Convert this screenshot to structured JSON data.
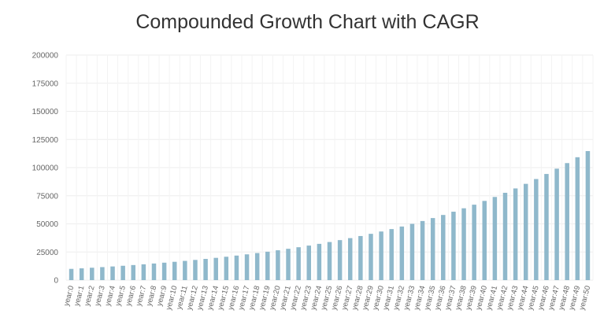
{
  "chart_data": {
    "type": "bar",
    "title": "Compounded Growth Chart with CAGR",
    "xlabel": "",
    "ylabel": "",
    "ylim": [
      0,
      200000
    ],
    "yticks": [
      0,
      25000,
      50000,
      75000,
      100000,
      125000,
      150000,
      175000,
      200000
    ],
    "grid": true,
    "bar_color": "#8fb8cb",
    "categories": [
      "year:0",
      "year:1",
      "year:2",
      "year:3",
      "year:4",
      "year:5",
      "year:6",
      "year:7",
      "year:8",
      "year:9",
      "year:10",
      "year:11",
      "year:12",
      "year:13",
      "year:14",
      "year:15",
      "year:16",
      "year:17",
      "year:18",
      "year:19",
      "year:20",
      "year:21",
      "year:22",
      "year:23",
      "year:24",
      "year:25",
      "year:26",
      "year:27",
      "year:28",
      "year:29",
      "year:30",
      "year:31",
      "year:32",
      "year:33",
      "year:34",
      "year:35",
      "year:36",
      "year:37",
      "year:38",
      "year:39",
      "year:40",
      "year:41",
      "year:42",
      "year:43",
      "year:44",
      "year:45",
      "year:46",
      "year:47",
      "year:48",
      "year:49",
      "year:50"
    ],
    "values": [
      10000,
      10500,
      11025,
      11576,
      12155,
      12763,
      13401,
      14071,
      14775,
      15513,
      16289,
      17103,
      17959,
      18856,
      19799,
      20789,
      21829,
      22920,
      24066,
      25270,
      26533,
      27860,
      29253,
      30715,
      32251,
      33864,
      35557,
      37335,
      39201,
      41161,
      43219,
      45380,
      47649,
      50032,
      52533,
      55160,
      57918,
      60814,
      63855,
      67048,
      70400,
      73920,
      77616,
      81497,
      85572,
      89850,
      94343,
      99060,
      104013,
      109214,
      114674
    ]
  }
}
